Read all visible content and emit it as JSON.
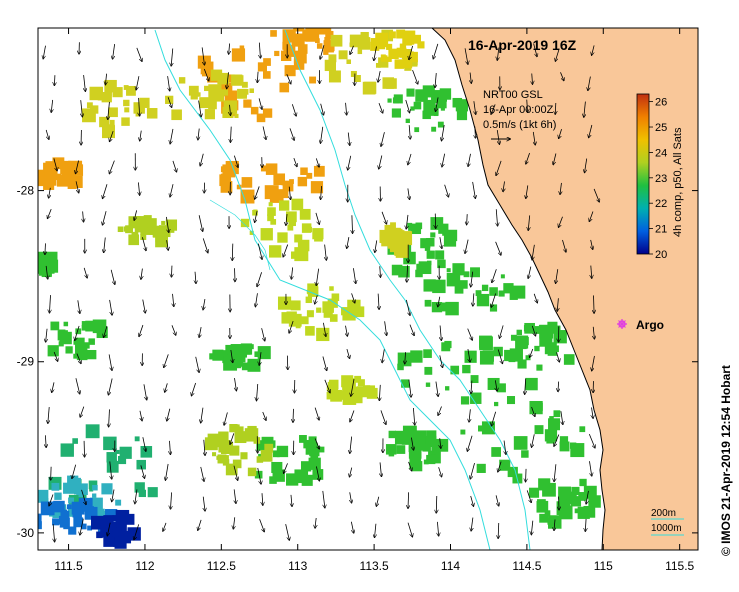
{
  "map": {
    "title": "16-Apr-2019 16Z",
    "lon_range": [
      111.3,
      115.62
    ],
    "lat_range": [
      -30.1,
      -27.05
    ],
    "lon_ticks": [
      "111.5",
      "112",
      "112.5",
      "113",
      "113.5",
      "114",
      "114.5",
      "115",
      "115.5"
    ],
    "lon_tick_values": [
      111.5,
      112,
      112.5,
      113,
      113.5,
      114,
      114.5,
      115,
      115.5
    ],
    "lat_ticks": [
      "-28",
      "-29",
      "-30"
    ],
    "lat_tick_values": [
      -28,
      -29,
      -30
    ],
    "colors": {
      "land": "#f9c799",
      "coastline": "#000000",
      "isobath": "#33dddd",
      "argo": "#e040e0"
    }
  },
  "legend": {
    "vector_source": "NRT00 GSL",
    "vector_time": "16-Apr 00:00Z",
    "vector_scale": "0.5m/s (1kt 6h)"
  },
  "colorbar": {
    "title": "4h comp, p50, All Sats",
    "labels": [
      "26",
      "25",
      "24",
      "23",
      "22",
      "21",
      "20"
    ],
    "values": [
      26,
      25,
      24,
      23,
      22,
      21,
      20
    ],
    "range": [
      20,
      26.3
    ],
    "stops": [
      "#00008b",
      "#0060e0",
      "#00b0b0",
      "#20c040",
      "#b0d020",
      "#f0c000",
      "#f08000",
      "#c03010"
    ]
  },
  "argo": {
    "label": "Argo"
  },
  "isobath_legend": [
    "200m",
    "1000m"
  ],
  "credit": "© IMOS 21-Apr-2019 12:54 Hobart"
}
